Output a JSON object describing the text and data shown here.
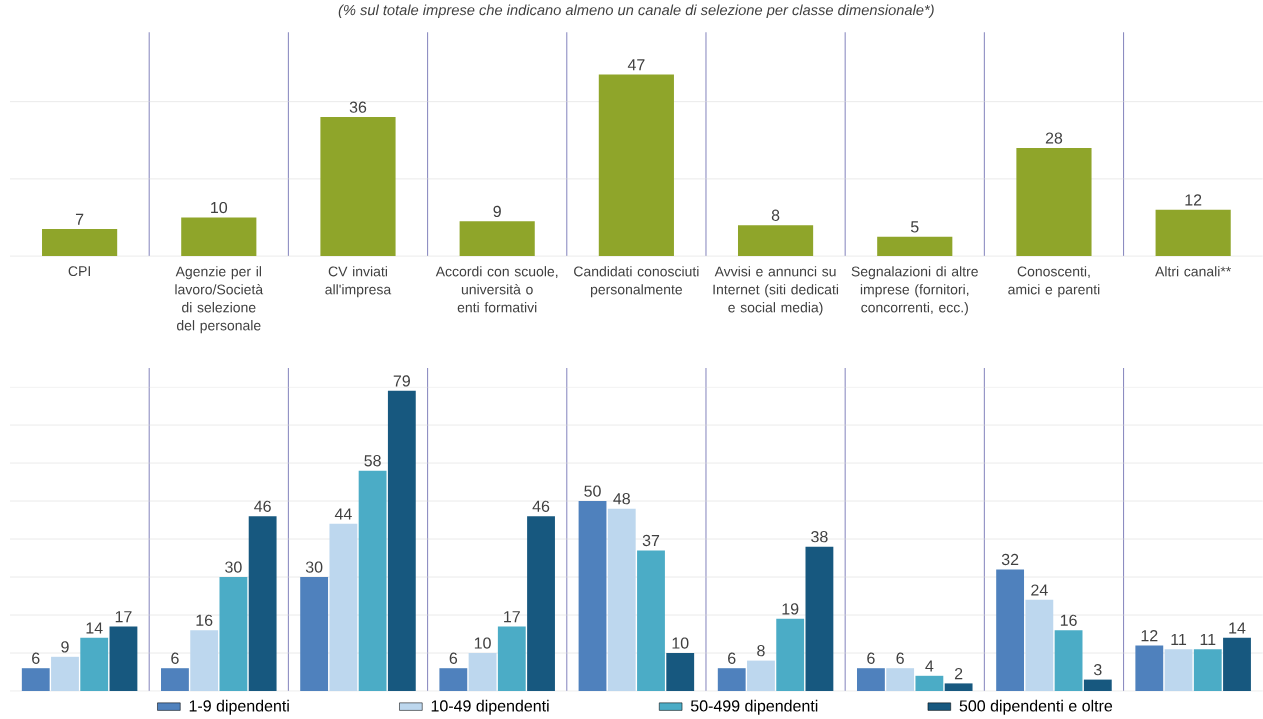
{
  "chart_data": [
    {
      "type": "bar",
      "subtitle": "(% sul totale imprese che indicano almeno un canale di selezione per classe dimensionale*)",
      "categories": [
        "CPI",
        "Agenzie per il lavoro/Società di selezione del personale",
        "CV inviati all'impresa",
        "Accordi con scuole, università o enti formativi",
        "Candidati conosciuti personalmente",
        "Avvisi e annunci su Internet (siti dedicati e social media)",
        "Segnalazioni di altre imprese (fornitori, concorrenti, ecc.)",
        "Conoscenti, amici e parenti",
        "Altri canali**"
      ],
      "values": [
        7,
        10,
        36,
        9,
        47,
        8,
        5,
        28,
        12
      ],
      "color": "#8fa52a",
      "ylim": [
        0,
        58
      ],
      "yticks": [
        {
          "value": 0,
          "label": null
        },
        {
          "value": 20,
          "label": null
        },
        {
          "value": 40,
          "label": null
        }
      ],
      "grid": true,
      "tick_labels": "x",
      "data_labels": true
    },
    {
      "type": "bar",
      "series": [
        {
          "name": "1-9 dipendenti",
          "color": "#4f81bd",
          "values": [
            6,
            6,
            30,
            6,
            50,
            6,
            6,
            32,
            12
          ]
        },
        {
          "name": "10-49 dipendenti",
          "color": "#bdd7ee",
          "values": [
            9,
            16,
            44,
            10,
            48,
            8,
            6,
            24,
            11
          ]
        },
        {
          "name": "50-499 dipendenti",
          "color": "#4bacc6",
          "values": [
            14,
            30,
            58,
            17,
            37,
            19,
            4,
            16,
            11
          ]
        },
        {
          "name": "500 dipendenti e oltre",
          "color": "#17587f",
          "values": [
            17,
            46,
            79,
            46,
            10,
            38,
            2,
            3,
            14
          ]
        }
      ],
      "ylim": [
        0,
        85
      ],
      "yticks": [
        {
          "value": 0,
          "label": null
        },
        {
          "value": 10,
          "label": null
        },
        {
          "value": 20,
          "label": null
        },
        {
          "value": 30,
          "label": null
        },
        {
          "value": 40,
          "label": null
        },
        {
          "value": 50,
          "label": null
        },
        {
          "value": 60,
          "label": null
        },
        {
          "value": 70,
          "label": null
        },
        {
          "value": 80,
          "label": null
        }
      ],
      "grid": true,
      "tick_labels": false,
      "data_labels": true,
      "legend": "bottom"
    }
  ]
}
